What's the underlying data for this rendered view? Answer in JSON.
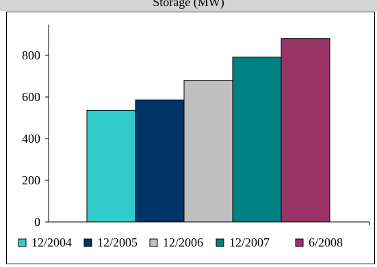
{
  "header": {
    "title": "Storage (MW)"
  },
  "chart_data": {
    "type": "bar",
    "title": "Storage (MW)",
    "categories": [
      "12/2004",
      "12/2005",
      "12/2006",
      "12/2007",
      "6/2008"
    ],
    "values": [
      536,
      586,
      680,
      792,
      880
    ],
    "colors": [
      "#33cccc",
      "#003366",
      "#c0c0c0",
      "#008080",
      "#993366"
    ],
    "xlabel": "",
    "ylabel": "",
    "ylim": [
      0,
      900
    ],
    "yticks": [
      0,
      200,
      400,
      600,
      800
    ],
    "grid": false,
    "legend_position": "bottom"
  }
}
